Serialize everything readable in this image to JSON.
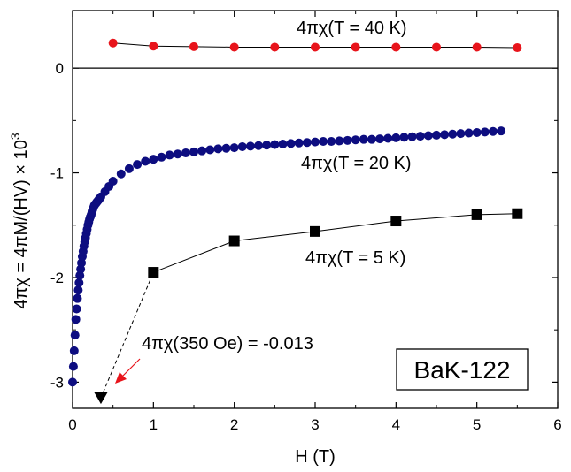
{
  "chart_data": {
    "type": "scatter",
    "xlabel": "H (T)",
    "ylabel": "4πχ = 4πM/(HV) × 10",
    "ylabel_superscript": "3",
    "xlim": [
      0,
      6
    ],
    "ylim": [
      -3.25,
      0.55
    ],
    "xticks": [
      "0",
      "1",
      "2",
      "3",
      "4",
      "5",
      "6"
    ],
    "xtick_values": [
      0,
      1,
      2,
      3,
      4,
      5,
      6
    ],
    "yticks": [
      "-3",
      "-2",
      "-1",
      "0"
    ],
    "ytick_values": [
      -3,
      -2,
      -1,
      0
    ],
    "zero_line": true,
    "grid": false,
    "legend": "none",
    "series": [
      {
        "label": "4πχ(T = 40 K)",
        "color": "#e8141b",
        "marker": "circle",
        "connected": true,
        "x": [
          0.5,
          1.0,
          1.5,
          2.0,
          2.5,
          3.0,
          3.5,
          4.0,
          4.5,
          5.0,
          5.5
        ],
        "y": [
          0.24,
          0.21,
          0.205,
          0.2,
          0.2,
          0.2,
          0.2,
          0.2,
          0.2,
          0.2,
          0.195
        ]
      },
      {
        "label": "4πχ(T = 20 K)",
        "color": "#0d0d80",
        "marker": "circle",
        "connected": false,
        "x": [
          0.0,
          0.01,
          0.02,
          0.03,
          0.04,
          0.05,
          0.06,
          0.07,
          0.08,
          0.09,
          0.1,
          0.11,
          0.12,
          0.13,
          0.14,
          0.15,
          0.16,
          0.17,
          0.18,
          0.19,
          0.2,
          0.21,
          0.22,
          0.23,
          0.24,
          0.25,
          0.26,
          0.27,
          0.28,
          0.29,
          0.3,
          0.31,
          0.32,
          0.33,
          0.34,
          0.35,
          0.4,
          0.45,
          0.5,
          0.6,
          0.7,
          0.8,
          0.9,
          1.0,
          1.1,
          1.2,
          1.3,
          1.4,
          1.5,
          1.6,
          1.7,
          1.8,
          1.9,
          2.0,
          2.1,
          2.2,
          2.3,
          2.4,
          2.5,
          2.6,
          2.7,
          2.8,
          2.9,
          3.0,
          3.1,
          3.2,
          3.3,
          3.4,
          3.5,
          3.6,
          3.7,
          3.8,
          3.9,
          4.0,
          4.1,
          4.2,
          4.3,
          4.4,
          4.5,
          4.6,
          4.7,
          4.8,
          4.9,
          5.0,
          5.1,
          5.2,
          5.3
        ],
        "y": [
          -3.0,
          -2.85,
          -2.7,
          -2.55,
          -2.4,
          -2.3,
          -2.2,
          -2.12,
          -2.05,
          -1.98,
          -1.92,
          -1.86,
          -1.8,
          -1.75,
          -1.7,
          -1.66,
          -1.62,
          -1.58,
          -1.54,
          -1.5,
          -1.47,
          -1.44,
          -1.42,
          -1.4,
          -1.37,
          -1.35,
          -1.33,
          -1.31,
          -1.3,
          -1.29,
          -1.28,
          -1.27,
          -1.26,
          -1.25,
          -1.24,
          -1.23,
          -1.18,
          -1.13,
          -1.08,
          -1.01,
          -0.96,
          -0.92,
          -0.89,
          -0.87,
          -0.85,
          -0.83,
          -0.82,
          -0.81,
          -0.8,
          -0.79,
          -0.78,
          -0.77,
          -0.765,
          -0.76,
          -0.75,
          -0.745,
          -0.74,
          -0.735,
          -0.73,
          -0.725,
          -0.72,
          -0.715,
          -0.71,
          -0.705,
          -0.7,
          -0.7,
          -0.695,
          -0.69,
          -0.685,
          -0.68,
          -0.68,
          -0.675,
          -0.67,
          -0.665,
          -0.66,
          -0.655,
          -0.65,
          -0.645,
          -0.64,
          -0.635,
          -0.63,
          -0.625,
          -0.62,
          -0.615,
          -0.61,
          -0.605,
          -0.6
        ]
      },
      {
        "label": "4πχ(T = 5 K)",
        "color": "#000000",
        "marker": "square",
        "connected": true,
        "x": [
          1.0,
          2.0,
          3.0,
          4.0,
          5.0,
          5.5
        ],
        "y": [
          -1.95,
          -1.65,
          -1.56,
          -1.46,
          -1.4,
          -1.39
        ]
      },
      {
        "label": "4πχ(350 Oe) = -0.013",
        "color": "#000000",
        "marker": "triangle-down",
        "connected": false,
        "x": [
          0.35
        ],
        "y": [
          -3.15
        ]
      }
    ],
    "dashed_connector": {
      "from": [
        0.35,
        -3.15
      ],
      "to": [
        1.0,
        -1.95
      ]
    },
    "annotations": {
      "t40": "4πχ(T = 40 K)",
      "t20": "4πχ(T = 20 K)",
      "t5": "4πχ(T = 5 K)",
      "low_field": "4πχ(350 Oe) = -0.013",
      "arrow_color": "#e8141b"
    },
    "sample_label": "BaK-122"
  }
}
